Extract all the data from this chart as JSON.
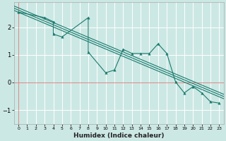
{
  "xlabel": "Humidex (Indice chaleur)",
  "bg_color": "#cce8e4",
  "grid_color": "#ffffff",
  "line_color": "#1a7a6e",
  "red_line_color": "#dd8888",
  "x_data": [
    0,
    3,
    4,
    4,
    5,
    8,
    8,
    10,
    11,
    12,
    13,
    14,
    15,
    16,
    17,
    18,
    19,
    20,
    21,
    22,
    23
  ],
  "y_data": [
    2.55,
    2.35,
    2.2,
    1.75,
    1.65,
    2.35,
    1.1,
    0.35,
    0.45,
    1.2,
    1.05,
    1.05,
    1.05,
    1.4,
    1.05,
    0.02,
    -0.38,
    -0.15,
    -0.38,
    -0.7,
    -0.75
  ],
  "reg_offsets": [
    0.12,
    0.04,
    -0.04
  ],
  "ylim": [
    -1.5,
    2.9
  ],
  "xlim": [
    -0.5,
    23.5
  ],
  "yticks": [
    -1,
    0,
    1,
    2
  ],
  "xticks": [
    0,
    1,
    2,
    3,
    4,
    5,
    6,
    7,
    8,
    9,
    10,
    11,
    12,
    13,
    14,
    15,
    16,
    17,
    18,
    19,
    20,
    21,
    22,
    23
  ],
  "figsize": [
    3.2,
    2.0
  ],
  "dpi": 100
}
